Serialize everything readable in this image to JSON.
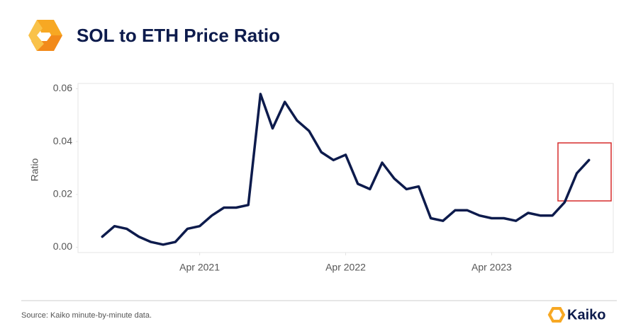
{
  "chart_data": {
    "type": "line",
    "title": "SOL to ETH Price Ratio",
    "y_label": "Ratio",
    "source": "Source: Kaiko minute-by-minute data.",
    "brand": "Kaiko",
    "color": "#0d1b4c",
    "grid": false,
    "x": [
      "2020-08",
      "2020-09",
      "2020-10",
      "2020-11",
      "2020-12",
      "2021-01",
      "2021-02",
      "2021-03",
      "2021-04",
      "2021-05",
      "2021-06",
      "2021-07",
      "2021-08",
      "2021-09",
      "2021-10",
      "2021-11",
      "2021-12",
      "2022-01",
      "2022-02",
      "2022-03",
      "2022-04",
      "2022-05",
      "2022-06",
      "2022-07",
      "2022-08",
      "2022-09",
      "2022-10",
      "2022-11",
      "2022-12",
      "2023-01",
      "2023-02",
      "2023-03",
      "2023-04",
      "2023-05",
      "2023-06",
      "2023-07",
      "2023-08",
      "2023-09",
      "2023-10",
      "2023-11",
      "2023-12"
    ],
    "values": [
      0.004,
      0.008,
      0.007,
      0.004,
      0.002,
      0.001,
      0.002,
      0.007,
      0.008,
      0.012,
      0.015,
      0.015,
      0.016,
      0.058,
      0.045,
      0.055,
      0.048,
      0.044,
      0.036,
      0.033,
      0.035,
      0.024,
      0.022,
      0.032,
      0.026,
      0.022,
      0.023,
      0.011,
      0.01,
      0.014,
      0.014,
      0.012,
      0.011,
      0.011,
      0.01,
      0.013,
      0.012,
      0.012,
      0.017,
      0.028,
      0.033
    ],
    "xlim": [
      "2020-06",
      "2024-02"
    ],
    "xticks": [
      {
        "value": "2021-04",
        "label": "Apr 2021"
      },
      {
        "value": "2022-04",
        "label": "Apr 2022"
      },
      {
        "value": "2023-04",
        "label": "Apr 2023"
      }
    ],
    "ylim": [
      -0.002,
      0.062
    ],
    "yticks": [
      {
        "value": 0,
        "label": "0.00"
      },
      {
        "value": 0.02,
        "label": "0.02"
      },
      {
        "value": 0.04,
        "label": "0.04"
      },
      {
        "value": 0.06,
        "label": "0.06"
      }
    ]
  }
}
